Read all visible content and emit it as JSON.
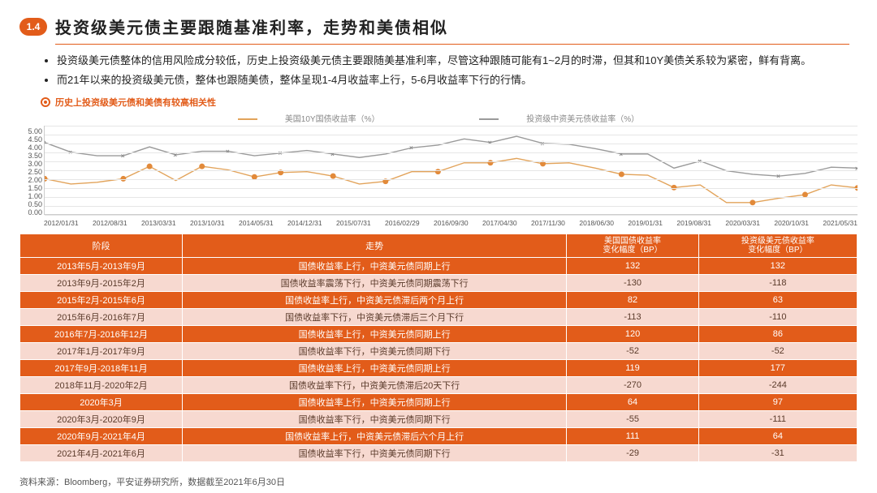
{
  "header": {
    "section": "1.4",
    "title": "投资级美元债主要跟随基准利率，走势和美债相似"
  },
  "bullets": [
    "投资级美元债整体的信用风险成分较低，历史上投资级美元债主要跟随美基准利率，尽管这种跟随可能有1~2月的时滞，但其和10Y美债关系较为紧密，鲜有背离。",
    "而21年以来的投资级美元债，整体也跟随美债，整体呈现1-4月收益率上行，5-6月收益率下行的行情。"
  ],
  "subIndicator": "历史上投资级美元债和美债有较高相关性",
  "chart": {
    "legend": [
      {
        "label": "美国10Y国债收益率（%）",
        "color": "#e2a35a"
      },
      {
        "label": "投资级中资美元债收益率（%）",
        "color": "#9a9a9a"
      }
    ],
    "ylim": [
      0,
      5.0
    ],
    "ytick_step": 0.5,
    "yticks": [
      "5.00",
      "4.50",
      "4.00",
      "3.50",
      "3.00",
      "2.50",
      "2.00",
      "1.50",
      "1.00",
      "0.50",
      "0.00"
    ],
    "xlabels": [
      "2012/01/31",
      "2012/08/31",
      "2013/03/31",
      "2013/10/31",
      "2014/05/31",
      "2014/12/31",
      "2015/07/31",
      "2016/02/29",
      "2016/09/30",
      "2017/04/30",
      "2017/11/30",
      "2018/06/30",
      "2019/01/31",
      "2019/08/31",
      "2020/03/31",
      "2020/10/31",
      "2021/05/31"
    ],
    "series_orange": [
      2.0,
      1.7,
      1.8,
      2.0,
      2.7,
      1.9,
      2.7,
      2.5,
      2.1,
      2.35,
      2.4,
      2.15,
      1.7,
      1.85,
      2.4,
      2.4,
      2.9,
      2.9,
      3.15,
      2.85,
      2.9,
      2.6,
      2.25,
      2.2,
      1.5,
      1.65,
      0.65,
      0.65,
      0.9,
      1.1,
      1.65,
      1.48
    ],
    "series_gray": [
      4.05,
      3.5,
      3.3,
      3.3,
      3.8,
      3.35,
      3.55,
      3.55,
      3.3,
      3.45,
      3.6,
      3.4,
      3.2,
      3.4,
      3.75,
      3.9,
      4.25,
      4.05,
      4.4,
      4.0,
      3.95,
      3.7,
      3.4,
      3.4,
      2.6,
      3.0,
      2.45,
      2.25,
      2.15,
      2.3,
      2.65,
      2.6
    ],
    "dot_idx": [
      0,
      3,
      4,
      6,
      8,
      9,
      11,
      13,
      15,
      17,
      19,
      22,
      24,
      27,
      29,
      31
    ],
    "x_idx": [
      0,
      1,
      3,
      5,
      7,
      9,
      11,
      14,
      17,
      19,
      22,
      25,
      28,
      31
    ],
    "background_color": "#ffffff",
    "grid_color": "#e6e6e6"
  },
  "table": {
    "headers": [
      "阶段",
      "走势",
      "美国国债收益率\n变化幅度（BP）",
      "投资级美元债收益率\n变化幅度（BP）"
    ],
    "rows": [
      {
        "phase": "2013年5月-2013年9月",
        "trend": "国债收益率上行，中资美元债同期上行",
        "us": "132",
        "ig": "132"
      },
      {
        "phase": "2013年9月-2015年2月",
        "trend": "国债收益率震荡下行，中资美元债同期震荡下行",
        "us": "-130",
        "ig": "-118"
      },
      {
        "phase": "2015年2月-2015年6月",
        "trend": "国债收益率上行，中资美元债滞后两个月上行",
        "us": "82",
        "ig": "63"
      },
      {
        "phase": "2015年6月-2016年7月",
        "trend": "国债收益率下行，中资美元债滞后三个月下行",
        "us": "-113",
        "ig": "-110"
      },
      {
        "phase": "2016年7月-2016年12月",
        "trend": "国债收益率上行，中资美元债同期上行",
        "us": "120",
        "ig": "86"
      },
      {
        "phase": "2017年1月-2017年9月",
        "trend": "国债收益率下行，中资美元债同期下行",
        "us": "-52",
        "ig": "-52"
      },
      {
        "phase": "2017年9月-2018年11月",
        "trend": "国债收益率上行，中资美元债同期上行",
        "us": "119",
        "ig": "177"
      },
      {
        "phase": "2018年11月-2020年2月",
        "trend": "国债收益率下行，中资美元债滞后20天下行",
        "us": "-270",
        "ig": "-244"
      },
      {
        "phase": "2020年3月",
        "trend": "国债收益率上行，中资美元债同期上行",
        "us": "64",
        "ig": "97"
      },
      {
        "phase": "2020年3月-2020年9月",
        "trend": "国债收益率下行，中资美元债同期下行",
        "us": "-55",
        "ig": "-111"
      },
      {
        "phase": "2020年9月-2021年4月",
        "trend": "国债收益率上行，中资美元债滞后六个月上行",
        "us": "111",
        "ig": "64"
      },
      {
        "phase": "2021年4月-2021年6月",
        "trend": "国债收益率下行，中资美元债同期下行",
        "us": "-29",
        "ig": "-31"
      }
    ]
  },
  "source": "资料来源：Bloomberg，平安证券研究所，数据截至2021年6月30日"
}
